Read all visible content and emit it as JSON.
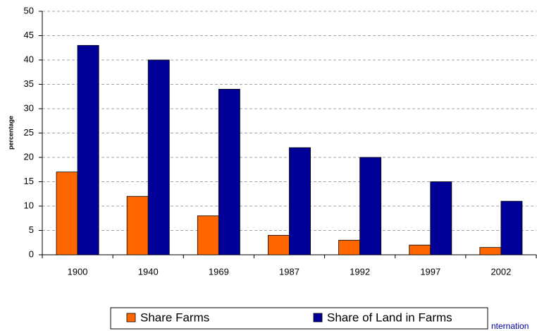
{
  "chart_data": {
    "type": "bar",
    "y_label": "percentage",
    "categories": [
      "1900",
      "1940",
      "1969",
      "1987",
      "1992",
      "1997",
      "2002"
    ],
    "series": [
      {
        "name": "Share Farms",
        "color": "#ff6600",
        "values": [
          17,
          12,
          8,
          4,
          3,
          2,
          1.5
        ]
      },
      {
        "name": "Share of Land in Farms",
        "color": "#000099",
        "values": [
          43,
          40,
          34,
          22,
          20,
          15,
          11
        ]
      }
    ],
    "ylim": [
      0,
      50
    ],
    "yticks": [
      0,
      5,
      10,
      15,
      20,
      25,
      30,
      35,
      40,
      45,
      50
    ],
    "grid": true,
    "legend": "bottom",
    "annotation": "nternation"
  }
}
